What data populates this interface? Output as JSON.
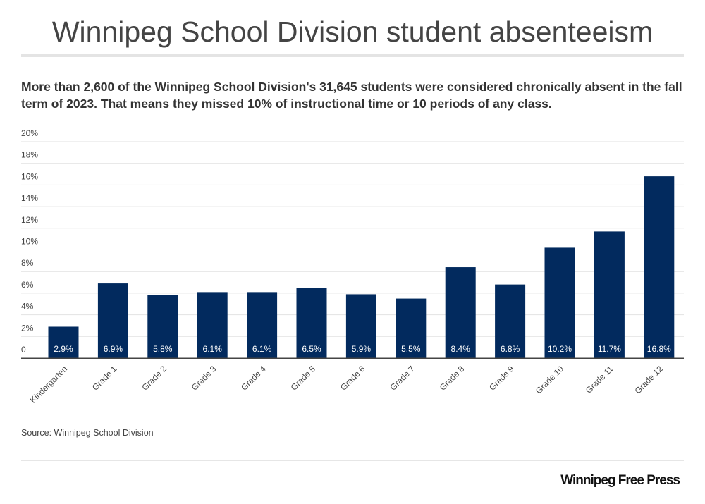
{
  "title": "Winnipeg School Division student absenteeism",
  "subtitle": "More than 2,600 of the Winnipeg School Division's 31,645 students were considered chronically absent in the fall term of 2023.  That means they missed 10% of instructional time or 10 periods of any class.",
  "source": "Source: Winnipeg School Division",
  "logo": "Winnipeg Free Press",
  "chart_data": {
    "type": "bar",
    "title": "Winnipeg School Division student absenteeism",
    "xlabel": "",
    "ylabel": "",
    "categories": [
      "Kindergarten",
      "Grade 1",
      "Grade 2",
      "Grade 3",
      "Grade 4",
      "Grade 5",
      "Grade 6",
      "Grade 7",
      "Grade 8",
      "Grade 9",
      "Grade 10",
      "Grade 11",
      "Grade 12"
    ],
    "values": [
      2.9,
      6.9,
      5.8,
      6.1,
      6.1,
      6.5,
      5.9,
      5.5,
      8.4,
      6.8,
      10.2,
      11.7,
      16.8
    ],
    "data_labels": [
      "2.9%",
      "6.9%",
      "5.8%",
      "6.1%",
      "6.1%",
      "6.5%",
      "5.9%",
      "5.5%",
      "8.4%",
      "6.8%",
      "10.2%",
      "11.7%",
      "16.8%"
    ],
    "yticks": [
      "0",
      "2%",
      "4%",
      "6%",
      "8%",
      "10%",
      "12%",
      "14%",
      "16%",
      "18%",
      "20%"
    ],
    "ylim": [
      0,
      20
    ],
    "grid": true,
    "bar_color": "#022a5e"
  }
}
